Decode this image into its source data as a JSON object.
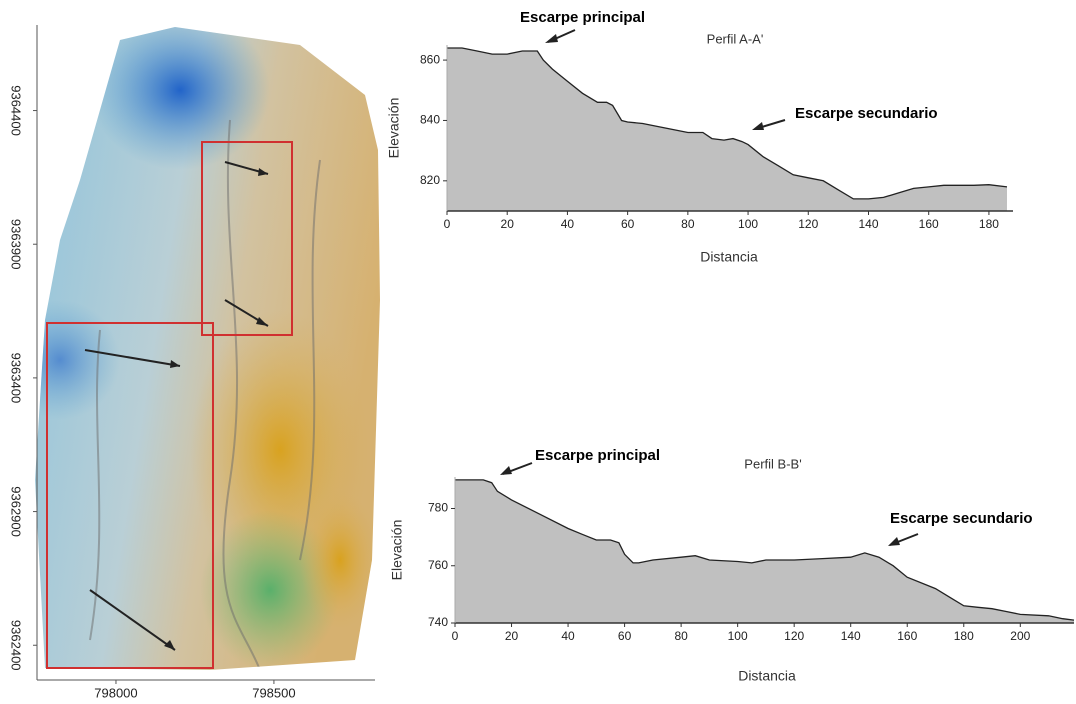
{
  "chart_data": [
    {
      "type": "map",
      "xlim": [
        797750,
        798820
      ],
      "xticks": [
        798000,
        798500
      ],
      "ylim": [
        9362270,
        9364720
      ],
      "yticks": [
        9364400,
        9363900,
        9363400,
        9362900,
        9362400
      ]
    },
    {
      "type": "area",
      "title": "Perfil A-A'",
      "xlabel": "Distancia",
      "ylabel": "Elevación",
      "annotations": [
        "Escarpe principal",
        "Escarpe secundario"
      ],
      "color": "#c0c0c0",
      "x": [
        0,
        5,
        10,
        15,
        20,
        25,
        30,
        32,
        35,
        40,
        45,
        50,
        53,
        55,
        58,
        60,
        65,
        70,
        75,
        80,
        85,
        88,
        92,
        95,
        98,
        100,
        105,
        110,
        115,
        120,
        125,
        130,
        135,
        140,
        145,
        150,
        155,
        160,
        165,
        170,
        175,
        180,
        186
      ],
      "values": [
        864,
        864,
        863,
        862,
        862,
        863,
        863,
        860,
        857,
        853,
        849,
        846,
        846,
        845,
        840,
        839.5,
        839,
        838,
        837,
        836,
        836,
        834,
        833.5,
        834,
        833,
        832,
        828,
        825,
        822,
        821,
        820,
        817,
        814,
        814,
        814.5,
        816,
        817.5,
        818,
        818.5,
        818.5,
        818.5,
        818.7,
        818
      ],
      "xlim": [
        0,
        188
      ],
      "xticks": [
        0,
        20,
        40,
        60,
        80,
        100,
        120,
        140,
        160,
        180
      ],
      "ylim": [
        810,
        865
      ],
      "yticks": [
        820,
        840,
        860
      ]
    },
    {
      "type": "area",
      "title": "Perfil B-B'",
      "xlabel": "Distancia",
      "ylabel": "Elevación",
      "annotations": [
        "Escarpe principal",
        "Escarpe secundario"
      ],
      "color": "#c0c0c0",
      "x": [
        0,
        10,
        13,
        15,
        20,
        30,
        40,
        45,
        50,
        55,
        58,
        60,
        63,
        65,
        70,
        80,
        85,
        90,
        100,
        105,
        110,
        120,
        130,
        140,
        145,
        150,
        155,
        160,
        170,
        175,
        180,
        185,
        190,
        195,
        200,
        210,
        215,
        219
      ],
      "values": [
        790,
        790,
        789,
        786,
        783,
        778,
        773,
        771,
        769,
        769,
        768,
        764,
        761,
        761,
        762,
        763,
        763.5,
        762,
        761.5,
        761,
        762,
        762,
        762.5,
        763,
        764.5,
        763,
        760,
        756,
        752,
        749,
        746,
        745.5,
        745,
        744,
        743,
        742.5,
        741.5,
        741
      ],
      "xlim": [
        0,
        219
      ],
      "xticks": [
        0,
        20,
        40,
        60,
        80,
        100,
        120,
        140,
        160,
        180,
        200
      ],
      "ylim": [
        740,
        791
      ],
      "yticks": [
        740,
        760,
        780
      ]
    }
  ]
}
